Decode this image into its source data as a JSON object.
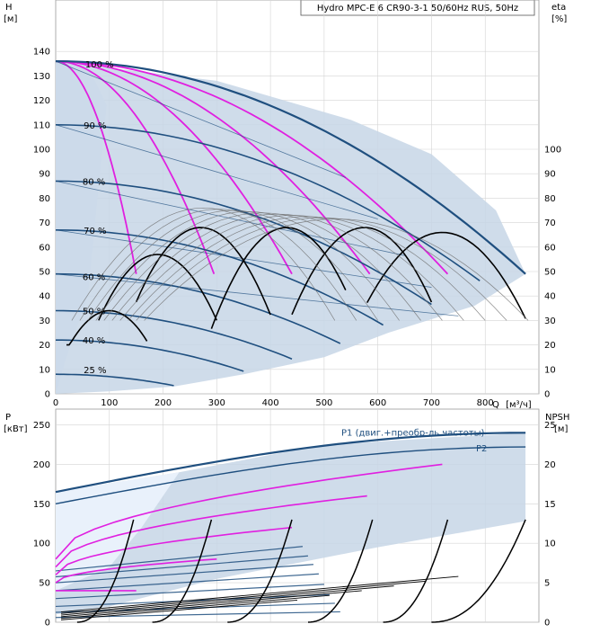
{
  "title": "Hydro MPC-E 6 CR90-3-1 50/60Hz RUS, 50Hz",
  "colors": {
    "envelope_fill": "#c7d6e6",
    "envelope_light": "#e9f1fb",
    "curve_dark_blue": "#1f4f7f",
    "curve_magenta": "#e020e0",
    "curve_black": "#000000",
    "curve_grey": "#6e6e6e"
  },
  "chart_data": [
    {
      "type": "line",
      "panel": "top",
      "ylabel_left": "H",
      "yunit_left": "[м]",
      "ylabel_right": "eta",
      "yunit_right": "[%]",
      "xlabel": "Q",
      "xunit": "[м³/ч]",
      "xlim": [
        0,
        900
      ],
      "ylim_left": [
        0,
        150
      ],
      "ylim_right": [
        0,
        150
      ],
      "x_ticks": [
        "0",
        "100",
        "200",
        "300",
        "400",
        "500",
        "600",
        "700",
        "800"
      ],
      "y_ticks_left": [
        "0",
        "10",
        "20",
        "30",
        "40",
        "50",
        "60",
        "70",
        "80",
        "90",
        "100",
        "110",
        "120",
        "130",
        "140"
      ],
      "y_ticks_right": [
        "0",
        "10",
        "20",
        "30",
        "40",
        "50",
        "60",
        "70",
        "80",
        "90",
        "100"
      ],
      "grid": true,
      "speed_labels": [
        {
          "text": "100 %",
          "x": 55,
          "y": 135
        },
        {
          "text": "90 %",
          "x": 52,
          "y": 110
        },
        {
          "text": "80 %",
          "x": 50,
          "y": 87
        },
        {
          "text": "70 %",
          "x": 52,
          "y": 67
        },
        {
          "text": "60 %",
          "x": 50,
          "y": 48
        },
        {
          "text": "50 %",
          "x": 50,
          "y": 34
        },
        {
          "text": "40 %",
          "x": 50,
          "y": 22
        },
        {
          "text": "25 %",
          "x": 52,
          "y": 10
        }
      ],
      "envelope": [
        [
          0,
          136
        ],
        [
          300,
          128
        ],
        [
          550,
          112
        ],
        [
          700,
          98
        ],
        [
          820,
          75
        ],
        [
          875,
          49
        ],
        [
          780,
          36
        ],
        [
          620,
          25
        ],
        [
          500,
          15
        ],
        [
          350,
          8
        ],
        [
          220,
          3
        ],
        [
          100,
          1
        ],
        [
          0,
          0
        ]
      ],
      "head_curves_max_flow": [
        150,
        295,
        440,
        585,
        730,
        875
      ],
      "head_curves_100pct_shutoff": 136,
      "part_speed_curves": [
        {
          "speed": 0.9,
          "shutoff": 110,
          "end_x": 790
        },
        {
          "speed": 0.8,
          "shutoff": 87,
          "end_x": 700
        },
        {
          "speed": 0.7,
          "shutoff": 67,
          "end_x": 610
        },
        {
          "speed": 0.6,
          "shutoff": 49,
          "end_x": 530
        },
        {
          "speed": 0.5,
          "shutoff": 34,
          "end_x": 440
        },
        {
          "speed": 0.4,
          "shutoff": 22,
          "end_x": 350
        },
        {
          "speed": 0.25,
          "shutoff": 8,
          "end_x": 220
        }
      ],
      "efficiency_peaks": [
        {
          "x0": 150,
          "x1": 400,
          "peak_x": 270,
          "peak_y": 68
        },
        {
          "x0": 290,
          "x1": 540,
          "peak_x": 430,
          "peak_y": 68
        },
        {
          "x0": 440,
          "x1": 700,
          "peak_x": 575,
          "peak_y": 68
        },
        {
          "x0": 580,
          "x1": 875,
          "peak_x": 720,
          "peak_y": 66
        },
        {
          "x0": 80,
          "x1": 300,
          "peak_x": 190,
          "peak_y": 57
        },
        {
          "x0": 20,
          "x1": 170,
          "peak_x": 100,
          "peak_y": 34
        }
      ]
    },
    {
      "type": "line",
      "panel": "bottom",
      "ylabel_left": "P",
      "yunit_left": "[кВт]",
      "ylabel_right": "NPSH",
      "yunit_right": "[м]",
      "xlim": [
        0,
        900
      ],
      "ylim_left": [
        0,
        270
      ],
      "ylim_right": [
        0,
        27
      ],
      "y_ticks_left": [
        "0",
        "50",
        "100",
        "150",
        "200",
        "250"
      ],
      "y_ticks_right": [
        "0",
        "5",
        "10",
        "15",
        "20",
        "25"
      ],
      "grid": true,
      "series": [
        {
          "name": "P1 (двиг.+преобр-ль частоты)",
          "y0": 165,
          "y1": 240
        },
        {
          "name": "P2",
          "y0": 150,
          "y1": 222
        }
      ],
      "power_lines": [
        {
          "y0": 130,
          "y1": 160
        },
        {
          "y0": 115,
          "y1": 140
        },
        {
          "y0": 100,
          "y1": 122
        },
        {
          "y0": 80,
          "y1": 102
        },
        {
          "y0": 60,
          "y1": 80
        },
        {
          "y0": 40,
          "y1": 58
        },
        {
          "y0": 25,
          "y1": 40
        },
        {
          "y0": 12,
          "y1": 22
        }
      ],
      "npsh_curves": [
        {
          "x0": 40,
          "x1": 145,
          "top": 13
        },
        {
          "x0": 180,
          "x1": 290,
          "top": 13
        },
        {
          "x0": 320,
          "x1": 440,
          "top": 13
        },
        {
          "x0": 470,
          "x1": 590,
          "top": 13
        },
        {
          "x0": 610,
          "x1": 730,
          "top": 13
        },
        {
          "x0": 700,
          "x1": 875,
          "top": 13
        }
      ]
    }
  ]
}
